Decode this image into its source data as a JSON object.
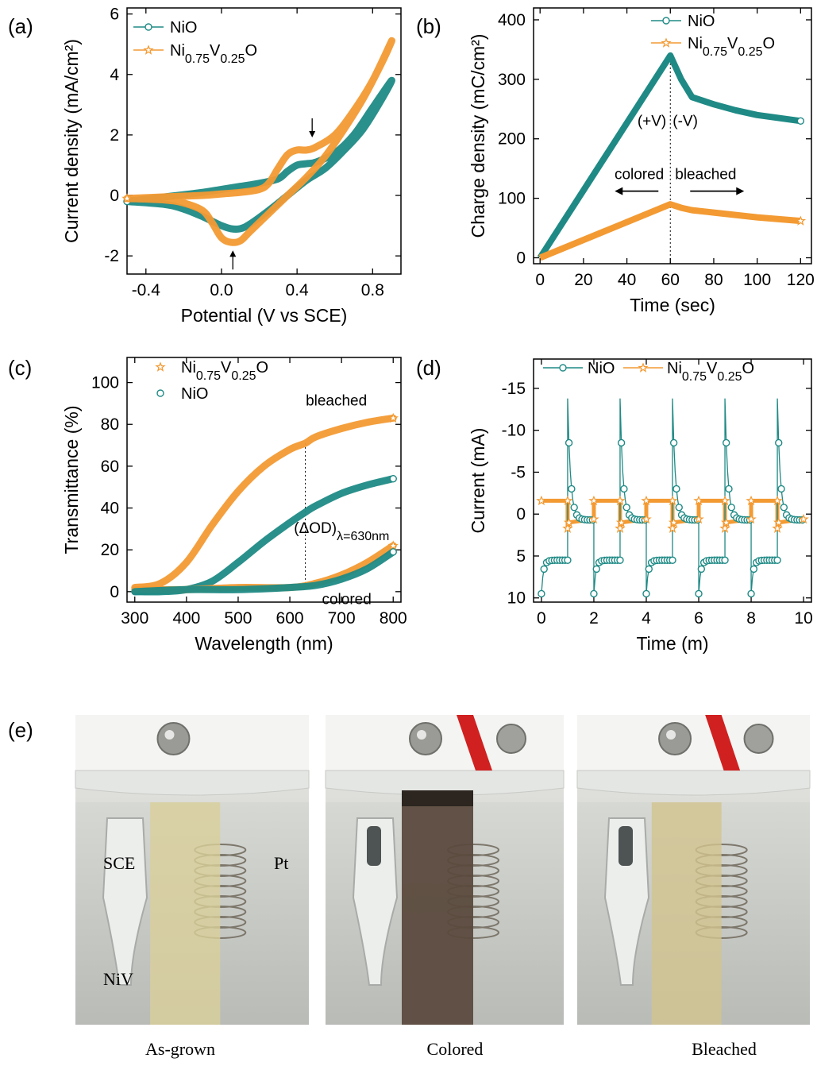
{
  "colors": {
    "nio": "#1f8a85",
    "niv": "#f39a33",
    "axis": "#000000"
  },
  "panel_labels": [
    "(a)",
    "(b)",
    "(c)",
    "(d)",
    "(e)"
  ],
  "chart_data": [
    {
      "id": "a",
      "type": "line",
      "xlabel": "Potential (V vs SCE)",
      "ylabel": "Current density (mA/cm²)",
      "xlim": [
        -0.5,
        0.95
      ],
      "ylim": [
        -2.6,
        6.2
      ],
      "xticks": [
        -0.4,
        0.0,
        0.4,
        0.8
      ],
      "yticks": [
        -2,
        0,
        2,
        4,
        6
      ],
      "xtick_labels": [
        "-0.4",
        "0.0",
        "0.4",
        "0.8"
      ],
      "ytick_labels": [
        "-2",
        "0",
        "2",
        "4",
        "6"
      ],
      "legend": [
        "NiO",
        "Ni0.75V0.25O"
      ],
      "series": [
        {
          "name": "NiO",
          "color_key": "nio",
          "x": [
            -0.5,
            -0.3,
            -0.1,
            0.0,
            0.1,
            0.2,
            0.3,
            0.35,
            0.4,
            0.45,
            0.5,
            0.6,
            0.7,
            0.8,
            0.9,
            0.85,
            0.75,
            0.65,
            0.55,
            0.45,
            0.35,
            0.25,
            0.15,
            0.1,
            0.05,
            0.0,
            -0.05,
            -0.1,
            -0.2,
            -0.3,
            -0.5
          ],
          "y": [
            -0.2,
            -0.05,
            0.1,
            0.2,
            0.3,
            0.4,
            0.55,
            0.8,
            1.0,
            1.05,
            1.1,
            1.4,
            2.0,
            2.9,
            3.8,
            3.2,
            2.2,
            1.5,
            0.9,
            0.5,
            0.0,
            -0.5,
            -0.95,
            -1.1,
            -1.1,
            -1.0,
            -0.85,
            -0.7,
            -0.45,
            -0.3,
            -0.2
          ]
        },
        {
          "name": "Ni0.75V0.25O",
          "color_key": "niv",
          "x": [
            -0.5,
            -0.3,
            -0.1,
            0.0,
            0.1,
            0.2,
            0.25,
            0.3,
            0.35,
            0.4,
            0.45,
            0.5,
            0.6,
            0.7,
            0.8,
            0.9,
            0.85,
            0.75,
            0.65,
            0.55,
            0.45,
            0.35,
            0.25,
            0.15,
            0.1,
            0.05,
            0.0,
            -0.05,
            -0.1,
            -0.2,
            -0.3,
            -0.5
          ],
          "y": [
            -0.1,
            -0.05,
            0.0,
            0.05,
            0.1,
            0.2,
            0.4,
            0.9,
            1.35,
            1.5,
            1.5,
            1.6,
            2.0,
            2.8,
            3.8,
            5.1,
            4.4,
            3.2,
            2.2,
            1.3,
            0.6,
            0.0,
            -0.6,
            -1.2,
            -1.5,
            -1.55,
            -1.4,
            -0.9,
            -0.5,
            -0.25,
            -0.15,
            -0.1
          ]
        }
      ],
      "arrows": [
        {
          "x": 0.48,
          "y": 2.55,
          "dir": "down"
        },
        {
          "x": 0.06,
          "y": -2.45,
          "dir": "up"
        }
      ]
    },
    {
      "id": "b",
      "type": "line",
      "xlabel": "Time (sec)",
      "ylabel": "Charge density (mC/cm²)",
      "xlim": [
        -3,
        125
      ],
      "ylim": [
        -10,
        420
      ],
      "xticks": [
        0,
        20,
        40,
        60,
        80,
        100,
        120
      ],
      "yticks": [
        0,
        100,
        200,
        300,
        400
      ],
      "xtick_labels": [
        "0",
        "20",
        "40",
        "60",
        "80",
        "100",
        "120"
      ],
      "ytick_labels": [
        "0",
        "100",
        "200",
        "300",
        "400"
      ],
      "legend": [
        "NiO",
        "Ni0.75V0.25O"
      ],
      "series": [
        {
          "name": "NiO",
          "color_key": "nio",
          "x": [
            0,
            60,
            65,
            70,
            80,
            90,
            100,
            110,
            120
          ],
          "y": [
            0,
            340,
            300,
            270,
            258,
            248,
            240,
            235,
            230
          ]
        },
        {
          "name": "Ni0.75V0.25O",
          "color_key": "niv",
          "x": [
            0,
            60,
            65,
            70,
            80,
            90,
            100,
            110,
            120
          ],
          "y": [
            0,
            90,
            84,
            80,
            76,
            72,
            68,
            65,
            62
          ]
        }
      ],
      "annotations": {
        "plus_v": "(+V)",
        "minus_v": "(-V)",
        "colored": "colored",
        "bleached": "bleached"
      },
      "divider_x": 60
    },
    {
      "id": "c",
      "type": "line",
      "xlabel": "Wavelength (nm)",
      "ylabel": "Transmittance (%)",
      "xlim": [
        285,
        815
      ],
      "ylim": [
        -5,
        112
      ],
      "xticks": [
        300,
        400,
        500,
        600,
        700,
        800
      ],
      "yticks": [
        0,
        20,
        40,
        60,
        80,
        100
      ],
      "xtick_labels": [
        "300",
        "400",
        "500",
        "600",
        "700",
        "800"
      ],
      "ytick_labels": [
        "0",
        "20",
        "40",
        "60",
        "80",
        "100"
      ],
      "legend": [
        "Ni0.75V0.25O",
        "NiO"
      ],
      "series": [
        {
          "name": "Ni0.75V0.25O",
          "color_key": "niv",
          "x": [
            300,
            350,
            400,
            450,
            500,
            550,
            600,
            630,
            650,
            700,
            750,
            800
          ],
          "y": [
            2,
            4,
            14,
            32,
            48,
            60,
            68,
            71,
            74,
            78,
            81,
            83
          ]
        },
        {
          "name": "NiO",
          "color_key": "nio",
          "x": [
            300,
            350,
            400,
            450,
            500,
            550,
            600,
            630,
            650,
            700,
            750,
            800
          ],
          "y": [
            0,
            0,
            1,
            5,
            14,
            24,
            33,
            38,
            41,
            47,
            51,
            54
          ]
        },
        {
          "name": "Ni0.75V0.25O",
          "color_key": "niv",
          "x": [
            300,
            400,
            500,
            600,
            650,
            700,
            750,
            800
          ],
          "y": [
            1,
            1,
            2,
            2,
            4,
            8,
            14,
            22
          ]
        },
        {
          "name": "NiO",
          "color_key": "nio",
          "x": [
            300,
            400,
            500,
            600,
            650,
            700,
            750,
            800
          ],
          "y": [
            0,
            1,
            1,
            2,
            3,
            6,
            11,
            19
          ]
        }
      ],
      "annotations": {
        "bleached": "bleached",
        "colored": "colored",
        "delta_od": "(ΔOD)",
        "lambda_sub": "λ=630nm"
      },
      "divider_x": 630
    },
    {
      "id": "d",
      "type": "line",
      "xlabel": "Time (m)",
      "ylabel": "Current (mA)",
      "xlim": [
        -0.3,
        10.3
      ],
      "ylim": [
        10.5,
        -18.5
      ],
      "xticks": [
        0,
        2,
        4,
        6,
        8,
        10
      ],
      "yticks": [
        -15,
        -10,
        -5,
        0,
        5,
        10
      ],
      "xtick_labels": [
        "0",
        "2",
        "4",
        "6",
        "8",
        "10"
      ],
      "ytick_labels": [
        "-15",
        "-10",
        "-5",
        "0",
        "5",
        "10"
      ],
      "legend": [
        "NiO",
        "Ni0.75V0.25O"
      ],
      "pulse_peaks_nio": [
        -14,
        9.5
      ],
      "plateau_niv": [
        -1.8,
        1.6
      ]
    }
  ],
  "photos": [
    {
      "caption": "As-grown",
      "labels": {
        "sce": "SCE",
        "pt": "Pt",
        "niv": "NiV"
      },
      "strip": "#d9d09a"
    },
    {
      "caption": "Colored",
      "strip": "#5b4a3e"
    },
    {
      "caption": "Bleached",
      "strip": "#d2c48e"
    }
  ]
}
